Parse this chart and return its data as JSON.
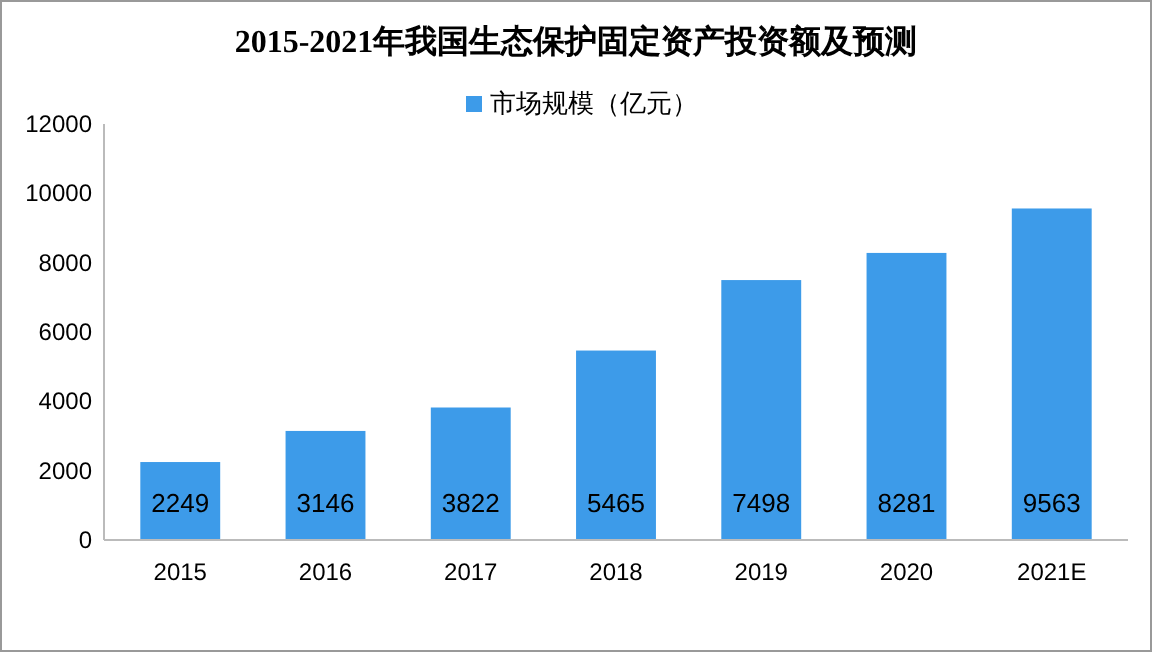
{
  "chart_data": {
    "type": "bar",
    "title": "2015-2021年我国生态保护固定资产投资额及预测",
    "categories": [
      "2015",
      "2016",
      "2017",
      "2018",
      "2019",
      "2020",
      "2021E"
    ],
    "series": [
      {
        "name": "市场规模（亿元）",
        "color": "#3d9be9",
        "values": [
          2249,
          3146,
          3822,
          5465,
          7498,
          8281,
          9563
        ]
      }
    ],
    "ylim": [
      0,
      12000
    ],
    "yticks": [
      0,
      2000,
      4000,
      6000,
      8000,
      10000,
      12000
    ],
    "data_labels": true,
    "legend": "top",
    "grid": false
  }
}
